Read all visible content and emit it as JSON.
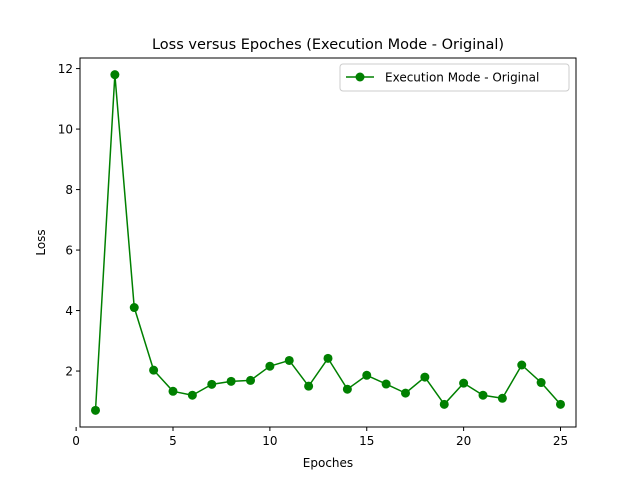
{
  "chart_data": {
    "type": "line",
    "title": "Loss versus Epoches (Execution Mode - Original)",
    "xlabel": "Epoches",
    "ylabel": "Loss",
    "xlim": [
      0.2,
      25.8
    ],
    "ylim": [
      0.15,
      12.35
    ],
    "xticks": [
      0,
      5,
      10,
      15,
      20,
      25
    ],
    "yticks": [
      2,
      4,
      6,
      8,
      10,
      12
    ],
    "grid": false,
    "legend_position": "top-right",
    "series": [
      {
        "name": "Execution Mode - Original",
        "color": "#008000",
        "marker": "circle",
        "x": [
          1,
          2,
          3,
          4,
          5,
          6,
          7,
          8,
          9,
          10,
          11,
          12,
          13,
          14,
          15,
          16,
          17,
          18,
          19,
          20,
          21,
          22,
          23,
          24,
          25
        ],
        "y": [
          0.7,
          11.8,
          4.1,
          2.03,
          1.33,
          1.2,
          1.56,
          1.66,
          1.69,
          2.16,
          2.35,
          1.5,
          2.42,
          1.4,
          1.86,
          1.57,
          1.27,
          1.8,
          0.9,
          1.6,
          1.2,
          1.1,
          2.2,
          1.62,
          0.9
        ]
      }
    ]
  }
}
